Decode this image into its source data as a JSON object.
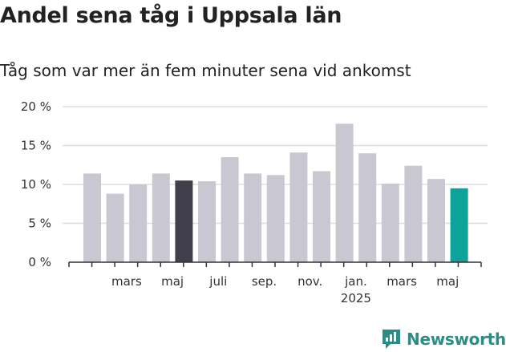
{
  "chart_data": {
    "type": "bar",
    "title": "Andel sena tåg i Uppsala län",
    "subtitle": "Tåg som var mer än fem minuter sena vid ankomst",
    "xlabel": "",
    "ylabel": "",
    "ylim": [
      0,
      20
    ],
    "yticks": [
      "0 %",
      "5 %",
      "10 %",
      "15 %",
      "20 %"
    ],
    "grid": true,
    "xtick_labels": [
      {
        "label": "mars",
        "index": 2
      },
      {
        "label": "maj",
        "index": 4
      },
      {
        "label": "juli",
        "index": 6
      },
      {
        "label": "sep.",
        "index": 8
      },
      {
        "label": "nov.",
        "index": 10
      },
      {
        "label": "jan.",
        "sublabel": "2025",
        "index": 12
      },
      {
        "label": "mars",
        "index": 14
      },
      {
        "label": "maj",
        "index": 16
      }
    ],
    "values": [
      11.4,
      8.8,
      10.0,
      11.4,
      10.5,
      10.4,
      13.5,
      11.4,
      11.2,
      14.1,
      11.7,
      17.8,
      14.0,
      10.1,
      12.4,
      10.7,
      9.5
    ],
    "highlight": {
      "4": "#413f4c",
      "16": "#0da39a"
    },
    "colors": {
      "bar": "#c9c7d1",
      "grid": "#dddddd",
      "axis": "#333333"
    }
  },
  "brand": {
    "name": "Newsworthy",
    "color": "#2a8e86",
    "icon": "newsworthy-logo-icon"
  }
}
